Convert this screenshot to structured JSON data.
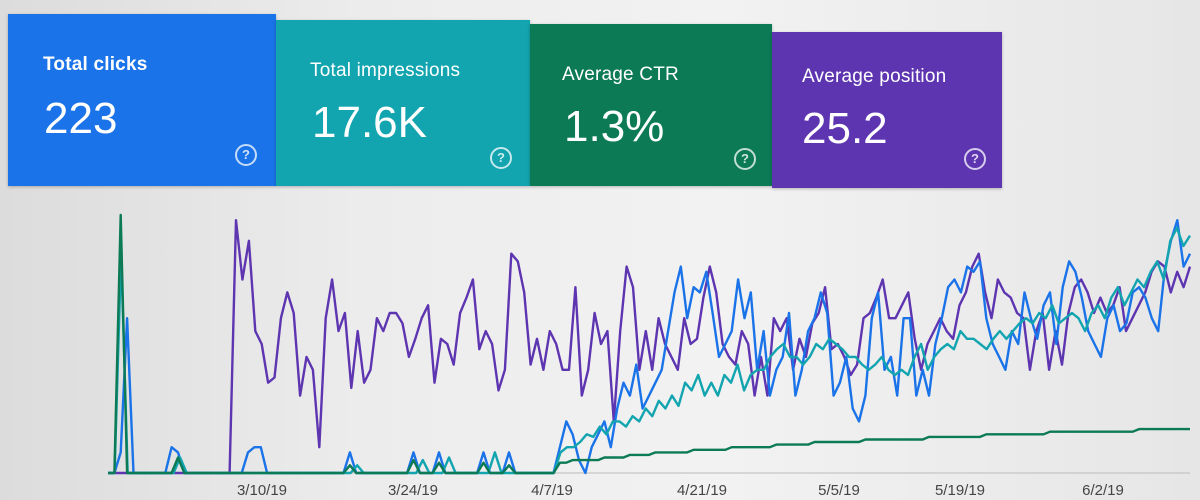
{
  "cards": [
    {
      "label": "Total clicks",
      "value": "223",
      "color": "#1a73e8"
    },
    {
      "label": "Total impressions",
      "value": "17.6K",
      "color": "#12a4af"
    },
    {
      "label": "Average CTR",
      "value": "1.3%",
      "color": "#0b7a55"
    },
    {
      "label": "Average position",
      "value": "25.2",
      "color": "#5e35b1"
    }
  ],
  "help_glyph": "?",
  "chart_data": {
    "type": "line",
    "x_ticks": [
      "3/10/19",
      "3/24/19",
      "4/7/19",
      "4/21/19",
      "5/5/19",
      "5/19/19",
      "6/2/19"
    ],
    "series": [
      {
        "color": "#5e35b1",
        "values": [
          0,
          0,
          0,
          0,
          0,
          0,
          0,
          0,
          0,
          0,
          0,
          0,
          0,
          0,
          0,
          0,
          0,
          0,
          0,
          0,
          98,
          75,
          90,
          55,
          50,
          35,
          37,
          60,
          70,
          62,
          30,
          45,
          40,
          10,
          60,
          75,
          55,
          62,
          33,
          55,
          35,
          40,
          60,
          55,
          62,
          62,
          58,
          45,
          52,
          60,
          65,
          35,
          52,
          50,
          42,
          62,
          68,
          75,
          48,
          55,
          50,
          32,
          40,
          85,
          82,
          70,
          42,
          52,
          40,
          55,
          50,
          40,
          40,
          72,
          30,
          40,
          62,
          50,
          55,
          20,
          55,
          80,
          72,
          40,
          55,
          40,
          60,
          50,
          45,
          40,
          60,
          50,
          52,
          68,
          80,
          70,
          50,
          45,
          42,
          55,
          50,
          30,
          45,
          30,
          60,
          55,
          60,
          40,
          52,
          45,
          58,
          62,
          72,
          48,
          50,
          45,
          38,
          42,
          60,
          62,
          68,
          75,
          60,
          60,
          65,
          70,
          52,
          40,
          50,
          55,
          60,
          55,
          52,
          65,
          70,
          80,
          85,
          70,
          60,
          75,
          70,
          68,
          62,
          60,
          40,
          55,
          62,
          40,
          55,
          42,
          62,
          72,
          75,
          70,
          62,
          68,
          62,
          65,
          72,
          55,
          60,
          65,
          70,
          78,
          82,
          80,
          70,
          78,
          72,
          80
        ]
      },
      {
        "color": "#1a73e8",
        "values": [
          0,
          0,
          8,
          60,
          0,
          0,
          0,
          0,
          0,
          0,
          10,
          8,
          0,
          0,
          0,
          0,
          0,
          0,
          0,
          0,
          0,
          0,
          8,
          10,
          10,
          0,
          0,
          0,
          0,
          0,
          0,
          0,
          0,
          0,
          0,
          0,
          0,
          0,
          8,
          0,
          0,
          0,
          0,
          0,
          0,
          0,
          0,
          0,
          8,
          0,
          0,
          0,
          8,
          0,
          0,
          0,
          0,
          0,
          0,
          8,
          0,
          0,
          0,
          8,
          0,
          0,
          0,
          0,
          0,
          0,
          0,
          10,
          20,
          15,
          5,
          0,
          10,
          15,
          20,
          10,
          25,
          35,
          30,
          42,
          25,
          30,
          35,
          40,
          55,
          70,
          80,
          60,
          72,
          70,
          78,
          62,
          45,
          50,
          55,
          75,
          60,
          70,
          40,
          55,
          30,
          40,
          45,
          62,
          30,
          40,
          55,
          60,
          70,
          62,
          30,
          35,
          45,
          25,
          20,
          30,
          60,
          70,
          40,
          45,
          30,
          60,
          60,
          30,
          40,
          30,
          50,
          60,
          72,
          75,
          70,
          80,
          78,
          82,
          60,
          50,
          45,
          40,
          55,
          50,
          70,
          60,
          52,
          65,
          70,
          50,
          72,
          82,
          78,
          68,
          55,
          50,
          45,
          60,
          65,
          55,
          58,
          70,
          72,
          68,
          60,
          55,
          78,
          90,
          98,
          80,
          85
        ]
      },
      {
        "color": "#12a4af",
        "values": [
          0,
          0,
          85,
          0,
          0,
          0,
          0,
          0,
          0,
          0,
          0,
          6,
          0,
          0,
          0,
          0,
          0,
          0,
          0,
          0,
          0,
          0,
          0,
          0,
          0,
          0,
          0,
          0,
          0,
          0,
          0,
          0,
          0,
          0,
          0,
          0,
          0,
          0,
          3,
          0,
          0,
          0,
          0,
          0,
          0,
          0,
          0,
          0,
          5,
          0,
          0,
          0,
          6,
          0,
          0,
          0,
          0,
          0,
          0,
          8,
          0,
          0,
          0,
          0,
          0,
          0,
          0,
          0,
          0,
          8,
          10,
          10,
          12,
          15,
          14,
          18,
          15,
          20,
          20,
          18,
          22,
          20,
          25,
          22,
          28,
          25,
          30,
          26,
          35,
          32,
          38,
          30,
          35,
          30,
          38,
          35,
          42,
          32,
          38,
          40,
          40,
          45,
          48,
          50,
          45,
          45,
          42,
          45,
          50,
          48,
          52,
          50,
          48,
          45,
          45,
          42,
          40,
          42,
          45,
          40,
          38,
          40,
          38,
          45,
          50,
          40,
          45,
          48,
          50,
          48,
          55,
          52,
          52,
          50,
          48,
          52,
          55,
          52,
          55,
          58,
          60,
          58,
          62,
          60,
          65,
          58,
          60,
          62,
          60,
          55,
          62,
          65,
          60,
          68,
          72,
          65,
          70,
          75,
          72,
          78,
          82,
          75,
          90,
          95,
          88,
          92
        ]
      },
      {
        "color": "#0b7a55",
        "values": [
          0,
          0,
          100,
          0,
          0,
          0,
          0,
          0,
          0,
          0,
          0,
          6,
          0,
          0,
          0,
          0,
          0,
          0,
          0,
          0,
          0,
          0,
          0,
          0,
          0,
          0,
          0,
          0,
          0,
          0,
          0,
          0,
          0,
          0,
          0,
          0,
          0,
          0,
          3,
          0,
          0,
          0,
          0,
          0,
          0,
          0,
          0,
          0,
          5,
          0,
          0,
          0,
          4,
          0,
          0,
          0,
          0,
          0,
          0,
          4,
          0,
          0,
          0,
          3,
          0,
          0,
          0,
          0,
          0,
          0,
          0,
          4,
          4,
          5,
          5,
          5,
          5,
          5,
          6,
          6,
          6,
          6,
          7,
          7,
          7,
          7,
          8,
          8,
          8,
          8,
          8,
          8,
          9,
          9,
          9,
          9,
          9,
          9,
          10,
          10,
          10,
          10,
          10,
          10,
          10,
          11,
          11,
          11,
          11,
          11,
          11,
          12,
          12,
          12,
          12,
          12,
          12,
          12,
          12,
          13,
          13,
          13,
          13,
          13,
          13,
          13,
          13,
          13,
          13,
          14,
          14,
          14,
          14,
          14,
          14,
          14,
          14,
          14,
          15,
          15,
          15,
          15,
          15,
          15,
          15,
          15,
          15,
          15,
          16,
          16,
          16,
          16,
          16,
          16,
          16,
          16,
          16,
          16,
          16,
          16,
          16,
          16,
          17,
          17,
          17,
          17,
          17,
          17,
          17,
          17,
          17
        ]
      }
    ]
  }
}
